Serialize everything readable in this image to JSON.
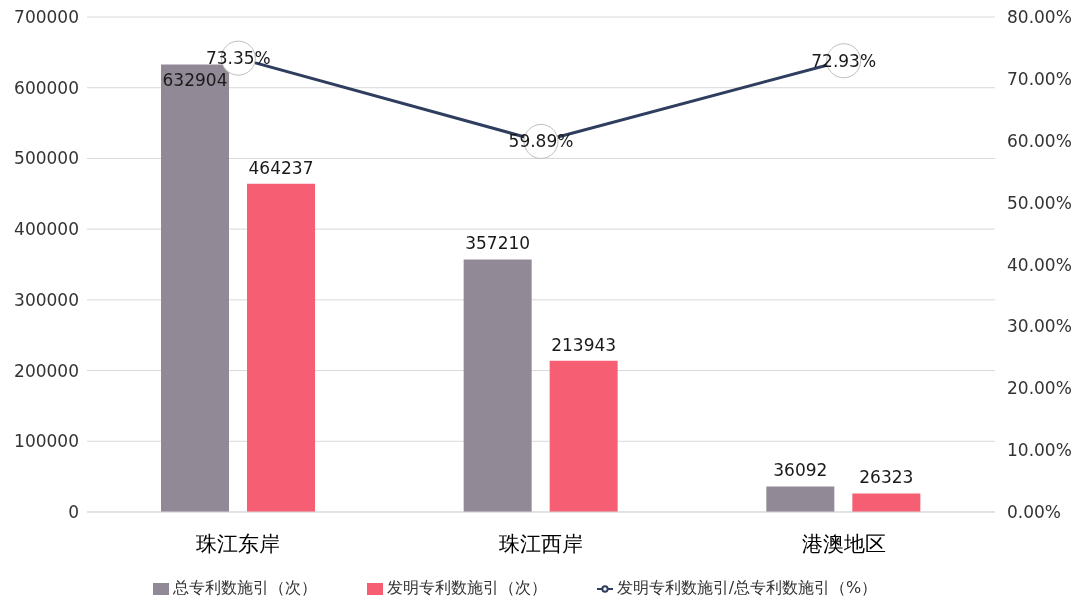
{
  "chart_data": {
    "type": "bar",
    "categories": [
      "珠江东岸",
      "珠江西岸",
      "港澳地区"
    ],
    "series": [
      {
        "name": "总专利数施引（次）",
        "color": "#918a96",
        "values": [
          632904,
          357210,
          36092
        ]
      },
      {
        "name": "发明专利数施引（次）",
        "color": "#f65f73",
        "values": [
          464237,
          213943,
          26323
        ]
      },
      {
        "name": "发明专利数施引/总专利数施引（%）",
        "type": "line",
        "axis": "y2",
        "color": "#2f3e5f",
        "marker": "circle",
        "values": [
          73.35,
          59.89,
          72.93
        ],
        "value_labels": [
          "73.35%",
          "59.89%",
          "72.93%"
        ]
      }
    ],
    "ylim": [
      0,
      700000
    ],
    "yticks": [
      0,
      100000,
      200000,
      300000,
      400000,
      500000,
      600000,
      700000
    ],
    "y2lim": [
      0,
      80
    ],
    "y2ticks": [
      {
        "value": 0,
        "label": "0.00%"
      },
      {
        "value": 10,
        "label": "10.00%"
      },
      {
        "value": 20,
        "label": "20.00%"
      },
      {
        "value": 30,
        "label": "30.00%"
      },
      {
        "value": 40,
        "label": "40.00%"
      },
      {
        "value": 50,
        "label": "50.00%"
      },
      {
        "value": 60,
        "label": "60.00%"
      },
      {
        "value": 70,
        "label": "70.00%"
      },
      {
        "value": 80,
        "label": "80.00%"
      }
    ],
    "data_labels": true,
    "grid": "y",
    "legend": "bottom"
  }
}
